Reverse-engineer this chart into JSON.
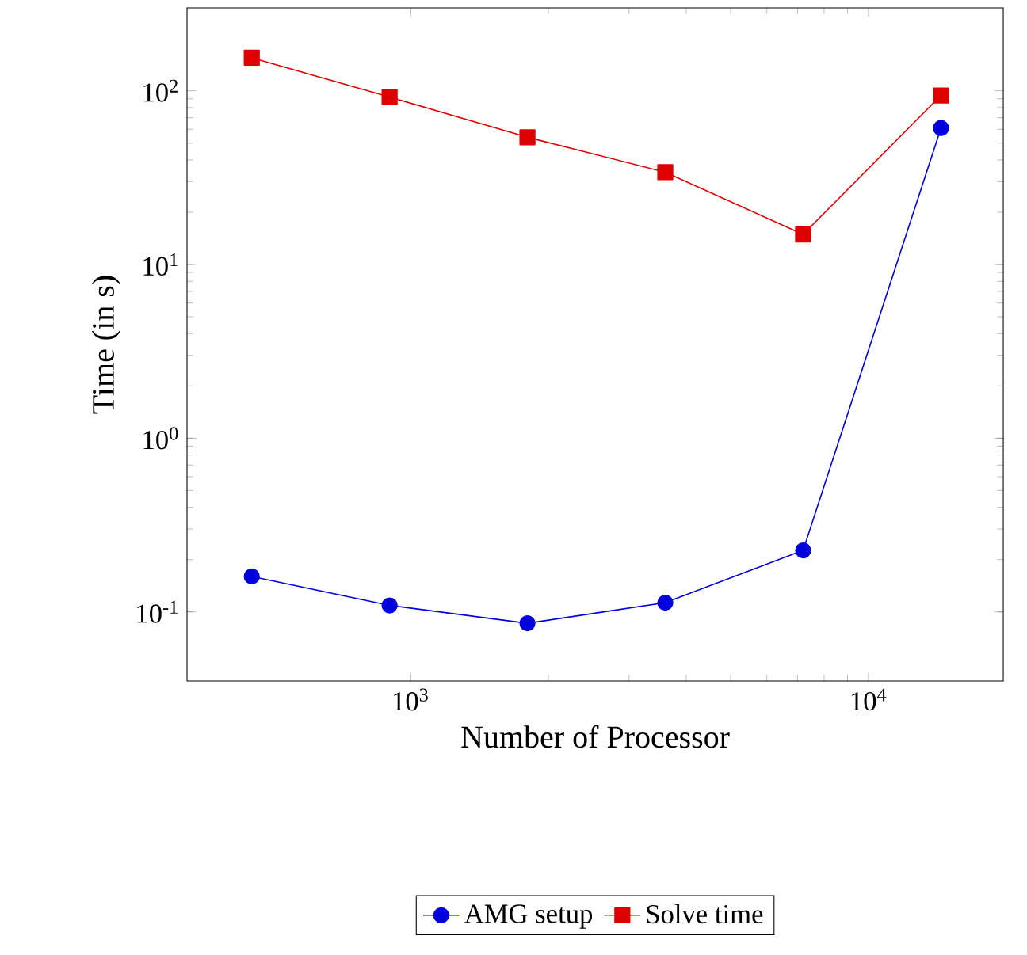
{
  "chart_data": {
    "type": "line",
    "xlabel": "Number of Processor",
    "ylabel": "Time (in s)",
    "log": "xy",
    "legend": "bottom",
    "line_style": "solid",
    "x": [
      450,
      900,
      1800,
      3600,
      7200,
      14400
    ],
    "xlim": [
      325,
      19700
    ],
    "ylim": [
      0.04,
      300
    ],
    "xticks": [
      {
        "value": 1000,
        "label": "10$^{3}$"
      },
      {
        "value": 10000,
        "label": "10$^{4}$"
      }
    ],
    "yticks": [
      {
        "value": 0.1,
        "label": "10$^{-1}$"
      },
      {
        "value": 1,
        "label": "10$^{0}$"
      },
      {
        "value": 10,
        "label": "10$^{1}$"
      },
      {
        "value": 100,
        "label": "10$^{2}$"
      }
    ],
    "series": [
      {
        "name": "AMG setup",
        "color": "#0000dd",
        "marker": "circle",
        "values": [
          0.16,
          0.109,
          0.086,
          0.113,
          0.226,
          61
        ]
      },
      {
        "name": "Solve time",
        "color": "#dd0000",
        "marker": "square",
        "values": [
          155,
          92,
          54,
          34,
          14.9,
          94
        ]
      }
    ]
  }
}
